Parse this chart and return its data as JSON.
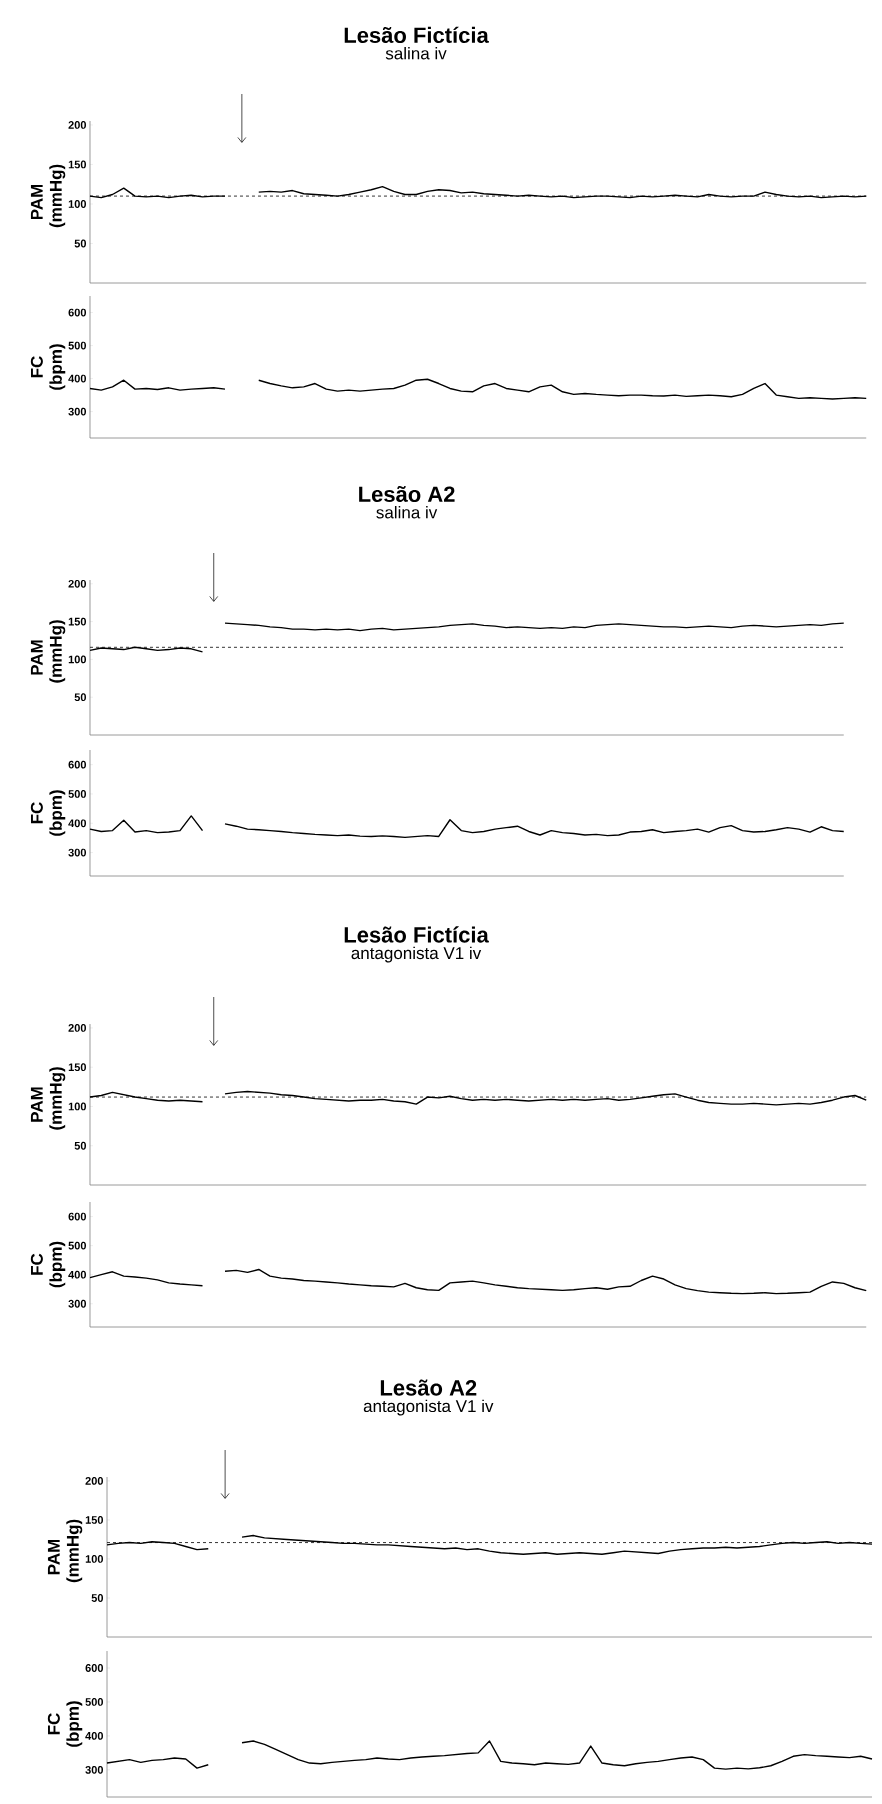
{
  "chart_data": [
    {
      "type": "line",
      "title": "Lesão Fictícia",
      "subtitle": "salina iv",
      "ylabel": "PAM (mmHg)",
      "tick_labels": "y",
      "ylim": [
        0,
        205
      ],
      "yticks": [
        50,
        100,
        150,
        200
      ],
      "categories": [
        null,
        null,
        null,
        null,
        null,
        null,
        null,
        null,
        null,
        null,
        null,
        null,
        null,
        null,
        null,
        null,
        null,
        null,
        null,
        null,
        null,
        null,
        null,
        null,
        null,
        null,
        null,
        null,
        null,
        null,
        null,
        null,
        null,
        null,
        null,
        null,
        null,
        null,
        null,
        null,
        null,
        null,
        null,
        null,
        null,
        null,
        null,
        null,
        null,
        null,
        null,
        null,
        null,
        null,
        null,
        null,
        null,
        null,
        null,
        null,
        null,
        null,
        null,
        null,
        null,
        null,
        null,
        null,
        null,
        null
      ],
      "series": [
        {
          "color": "#000000",
          "values": [
            110,
            108,
            112,
            120,
            110,
            109,
            110,
            108,
            110,
            111,
            109,
            110,
            110,
            null,
            null,
            null,
            null,
            null,
            null,
            null,
            null,
            null,
            null,
            null,
            null,
            null,
            null,
            null,
            null,
            null,
            null,
            null,
            null,
            null,
            null,
            null,
            null,
            null,
            null,
            null,
            null,
            null,
            null,
            null,
            null,
            null,
            null,
            null,
            null,
            null,
            null,
            null,
            null,
            null,
            null,
            null,
            null,
            null,
            null,
            null,
            null,
            null,
            null,
            null,
            null,
            null,
            null,
            null,
            null,
            null
          ]
        },
        {
          "color": "#000000",
          "values": [
            null,
            null,
            null,
            null,
            null,
            null,
            null,
            null,
            null,
            null,
            null,
            null,
            null,
            null,
            null,
            115,
            116,
            115,
            117,
            113,
            112,
            111,
            110,
            112,
            115,
            118,
            122,
            116,
            112,
            112,
            116,
            118,
            117,
            114,
            115,
            113,
            112,
            111,
            110,
            111,
            110,
            109,
            110,
            108,
            109,
            110,
            110,
            109,
            108,
            110,
            109,
            110,
            111,
            110,
            109,
            112,
            110,
            109,
            110,
            110,
            115,
            112,
            110,
            109,
            110,
            108,
            109,
            110,
            109,
            110
          ]
        }
      ],
      "ref_lines": [
        {
          "axis": "y",
          "value": 110,
          "color": "#000000",
          "line_style": "dashed"
        }
      ]
    },
    {
      "type": "line",
      "ylabel": "FC (bpm)",
      "tick_labels": "y",
      "ylim": [
        220,
        650
      ],
      "yticks": [
        300,
        400,
        500,
        600
      ],
      "categories": [
        null,
        null,
        null,
        null,
        null,
        null,
        null,
        null,
        null,
        null,
        null,
        null,
        null,
        null,
        null,
        null,
        null,
        null,
        null,
        null,
        null,
        null,
        null,
        null,
        null,
        null,
        null,
        null,
        null,
        null,
        null,
        null,
        null,
        null,
        null,
        null,
        null,
        null,
        null,
        null,
        null,
        null,
        null,
        null,
        null,
        null,
        null,
        null,
        null,
        null,
        null,
        null,
        null,
        null,
        null,
        null,
        null,
        null,
        null,
        null,
        null,
        null,
        null,
        null,
        null,
        null,
        null,
        null,
        null,
        null
      ],
      "series": [
        {
          "color": "#000000",
          "values": [
            370,
            365,
            375,
            395,
            368,
            370,
            367,
            372,
            365,
            368,
            370,
            372,
            368,
            null,
            null,
            null,
            null,
            null,
            null,
            null,
            null,
            null,
            null,
            null,
            null,
            null,
            null,
            null,
            null,
            null,
            null,
            null,
            null,
            null,
            null,
            null,
            null,
            null,
            null,
            null,
            null,
            null,
            null,
            null,
            null,
            null,
            null,
            null,
            null,
            null,
            null,
            null,
            null,
            null,
            null,
            null,
            null,
            null,
            null,
            null,
            null,
            null,
            null,
            null,
            null,
            null,
            null,
            null,
            null,
            null
          ]
        },
        {
          "color": "#000000",
          "values": [
            null,
            null,
            null,
            null,
            null,
            null,
            null,
            null,
            null,
            null,
            null,
            null,
            null,
            null,
            null,
            395,
            385,
            378,
            372,
            375,
            385,
            368,
            362,
            365,
            362,
            365,
            368,
            370,
            380,
            395,
            398,
            385,
            370,
            362,
            360,
            378,
            385,
            370,
            365,
            360,
            375,
            380,
            360,
            352,
            355,
            352,
            350,
            348,
            350,
            350,
            348,
            347,
            350,
            346,
            348,
            350,
            348,
            345,
            352,
            370,
            385,
            350,
            345,
            340,
            342,
            340,
            338,
            340,
            342,
            340
          ]
        }
      ]
    },
    {
      "type": "line",
      "title": "Lesão A2",
      "subtitle": "salina iv",
      "ylabel": "PAM (mmHg)",
      "tick_labels": "y",
      "ylim": [
        0,
        205
      ],
      "yticks": [
        50,
        100,
        150,
        200
      ],
      "categories": [
        null,
        null,
        null,
        null,
        null,
        null,
        null,
        null,
        null,
        null,
        null,
        null,
        null,
        null,
        null,
        null,
        null,
        null,
        null,
        null,
        null,
        null,
        null,
        null,
        null,
        null,
        null,
        null,
        null,
        null,
        null,
        null,
        null,
        null,
        null,
        null,
        null,
        null,
        null,
        null,
        null,
        null,
        null,
        null,
        null,
        null,
        null,
        null,
        null,
        null,
        null,
        null,
        null,
        null,
        null,
        null,
        null,
        null,
        null,
        null,
        null,
        null,
        null,
        null,
        null,
        null,
        null,
        null
      ],
      "series": [
        {
          "color": "#000000",
          "values": [
            112,
            115,
            114,
            113,
            116,
            114,
            112,
            113,
            115,
            114,
            110,
            null,
            null,
            null,
            null,
            null,
            null,
            null,
            null,
            null,
            null,
            null,
            null,
            null,
            null,
            null,
            null,
            null,
            null,
            null,
            null,
            null,
            null,
            null,
            null,
            null,
            null,
            null,
            null,
            null,
            null,
            null,
            null,
            null,
            null,
            null,
            null,
            null,
            null,
            null,
            null,
            null,
            null,
            null,
            null,
            null,
            null,
            null,
            null,
            null,
            null,
            null,
            null,
            null,
            null,
            null,
            null,
            null
          ]
        },
        {
          "color": "#000000",
          "values": [
            null,
            null,
            null,
            null,
            null,
            null,
            null,
            null,
            null,
            null,
            null,
            null,
            148,
            147,
            146,
            145,
            143,
            142,
            140,
            140,
            139,
            140,
            139,
            140,
            138,
            140,
            141,
            139,
            140,
            141,
            142,
            143,
            145,
            146,
            147,
            145,
            144,
            142,
            143,
            142,
            141,
            142,
            141,
            143,
            142,
            145,
            146,
            147,
            146,
            145,
            144,
            143,
            143,
            142,
            143,
            144,
            143,
            142,
            144,
            145,
            144,
            143,
            144,
            145,
            146,
            145,
            147,
            148
          ]
        }
      ],
      "ref_lines": [
        {
          "axis": "y",
          "value": 116,
          "color": "#000000",
          "line_style": "dashed"
        }
      ]
    },
    {
      "type": "line",
      "ylabel": "FC (bpm)",
      "tick_labels": "y",
      "ylim": [
        220,
        650
      ],
      "yticks": [
        300,
        400,
        500,
        600
      ],
      "categories": [
        null,
        null,
        null,
        null,
        null,
        null,
        null,
        null,
        null,
        null,
        null,
        null,
        null,
        null,
        null,
        null,
        null,
        null,
        null,
        null,
        null,
        null,
        null,
        null,
        null,
        null,
        null,
        null,
        null,
        null,
        null,
        null,
        null,
        null,
        null,
        null,
        null,
        null,
        null,
        null,
        null,
        null,
        null,
        null,
        null,
        null,
        null,
        null,
        null,
        null,
        null,
        null,
        null,
        null,
        null,
        null,
        null,
        null,
        null,
        null,
        null,
        null,
        null,
        null,
        null,
        null,
        null,
        null
      ],
      "series": [
        {
          "color": "#000000",
          "values": [
            380,
            372,
            375,
            410,
            370,
            375,
            368,
            370,
            375,
            425,
            375,
            null,
            null,
            null,
            null,
            null,
            null,
            null,
            null,
            null,
            null,
            null,
            null,
            null,
            null,
            null,
            null,
            null,
            null,
            null,
            null,
            null,
            null,
            null,
            null,
            null,
            null,
            null,
            null,
            null,
            null,
            null,
            null,
            null,
            null,
            null,
            null,
            null,
            null,
            null,
            null,
            null,
            null,
            null,
            null,
            null,
            null,
            null,
            null,
            null,
            null,
            null,
            null,
            null,
            null,
            null,
            null,
            null
          ]
        },
        {
          "color": "#000000",
          "values": [
            null,
            null,
            null,
            null,
            null,
            null,
            null,
            null,
            null,
            null,
            null,
            null,
            398,
            390,
            380,
            378,
            375,
            372,
            368,
            365,
            362,
            360,
            358,
            360,
            356,
            355,
            357,
            355,
            352,
            355,
            358,
            355,
            412,
            375,
            368,
            372,
            380,
            385,
            390,
            372,
            360,
            375,
            368,
            365,
            360,
            362,
            358,
            360,
            370,
            372,
            378,
            368,
            372,
            375,
            380,
            370,
            385,
            392,
            375,
            370,
            372,
            378,
            385,
            380,
            370,
            388,
            375,
            372
          ]
        }
      ]
    },
    {
      "type": "line",
      "title": "Lesão Fictícia",
      "subtitle": "antagonista V1 iv",
      "ylabel": "PAM (mmHg)",
      "tick_labels": "y",
      "ylim": [
        0,
        205
      ],
      "yticks": [
        50,
        100,
        150,
        200
      ],
      "categories": [
        null,
        null,
        null,
        null,
        null,
        null,
        null,
        null,
        null,
        null,
        null,
        null,
        null,
        null,
        null,
        null,
        null,
        null,
        null,
        null,
        null,
        null,
        null,
        null,
        null,
        null,
        null,
        null,
        null,
        null,
        null,
        null,
        null,
        null,
        null,
        null,
        null,
        null,
        null,
        null,
        null,
        null,
        null,
        null,
        null,
        null,
        null,
        null,
        null,
        null,
        null,
        null,
        null,
        null,
        null,
        null,
        null,
        null,
        null,
        null,
        null,
        null,
        null,
        null,
        null,
        null,
        null,
        null,
        null,
        null
      ],
      "series": [
        {
          "color": "#000000",
          "values": [
            112,
            114,
            118,
            115,
            112,
            110,
            108,
            107,
            108,
            107,
            106,
            null,
            null,
            null,
            null,
            null,
            null,
            null,
            null,
            null,
            null,
            null,
            null,
            null,
            null,
            null,
            null,
            null,
            null,
            null,
            null,
            null,
            null,
            null,
            null,
            null,
            null,
            null,
            null,
            null,
            null,
            null,
            null,
            null,
            null,
            null,
            null,
            null,
            null,
            null,
            null,
            null,
            null,
            null,
            null,
            null,
            null,
            null,
            null,
            null,
            null,
            null,
            null,
            null,
            null,
            null,
            null,
            null,
            null,
            null
          ]
        },
        {
          "color": "#000000",
          "values": [
            null,
            null,
            null,
            null,
            null,
            null,
            null,
            null,
            null,
            null,
            null,
            null,
            116,
            118,
            119,
            118,
            117,
            115,
            114,
            112,
            110,
            109,
            108,
            107,
            108,
            108,
            109,
            107,
            106,
            103,
            112,
            111,
            113,
            110,
            108,
            109,
            108,
            109,
            108,
            107,
            108,
            109,
            108,
            109,
            108,
            109,
            110,
            108,
            109,
            111,
            113,
            115,
            116,
            112,
            108,
            105,
            104,
            103,
            103,
            104,
            103,
            102,
            103,
            104,
            103,
            105,
            108,
            112,
            114,
            108
          ]
        }
      ],
      "ref_lines": [
        {
          "axis": "y",
          "value": 112,
          "color": "#000000",
          "line_style": "dashed"
        }
      ]
    },
    {
      "type": "line",
      "ylabel": "FC (bpm)",
      "tick_labels": "y",
      "ylim": [
        220,
        650
      ],
      "yticks": [
        300,
        400,
        500,
        600
      ],
      "categories": [
        null,
        null,
        null,
        null,
        null,
        null,
        null,
        null,
        null,
        null,
        null,
        null,
        null,
        null,
        null,
        null,
        null,
        null,
        null,
        null,
        null,
        null,
        null,
        null,
        null,
        null,
        null,
        null,
        null,
        null,
        null,
        null,
        null,
        null,
        null,
        null,
        null,
        null,
        null,
        null,
        null,
        null,
        null,
        null,
        null,
        null,
        null,
        null,
        null,
        null,
        null,
        null,
        null,
        null,
        null,
        null,
        null,
        null,
        null,
        null,
        null,
        null,
        null,
        null,
        null,
        null,
        null,
        null,
        null,
        null
      ],
      "series": [
        {
          "color": "#000000",
          "values": [
            390,
            400,
            410,
            395,
            392,
            388,
            382,
            372,
            368,
            365,
            362,
            null,
            null,
            null,
            null,
            null,
            null,
            null,
            null,
            null,
            null,
            null,
            null,
            null,
            null,
            null,
            null,
            null,
            null,
            null,
            null,
            null,
            null,
            null,
            null,
            null,
            null,
            null,
            null,
            null,
            null,
            null,
            null,
            null,
            null,
            null,
            null,
            null,
            null,
            null,
            null,
            null,
            null,
            null,
            null,
            null,
            null,
            null,
            null,
            null,
            null,
            null,
            null,
            null,
            null,
            null,
            null,
            null,
            null,
            null
          ]
        },
        {
          "color": "#000000",
          "values": [
            null,
            null,
            null,
            null,
            null,
            null,
            null,
            null,
            null,
            null,
            null,
            null,
            412,
            415,
            408,
            418,
            395,
            388,
            385,
            380,
            378,
            375,
            372,
            368,
            365,
            362,
            360,
            358,
            370,
            355,
            348,
            346,
            372,
            375,
            378,
            372,
            365,
            360,
            355,
            352,
            350,
            348,
            346,
            348,
            352,
            355,
            350,
            358,
            360,
            380,
            395,
            385,
            365,
            352,
            345,
            340,
            338,
            336,
            335,
            336,
            338,
            335,
            336,
            338,
            340,
            360,
            375,
            370,
            355,
            345
          ]
        }
      ]
    },
    {
      "type": "line",
      "title": "Lesão A2",
      "subtitle": "antagonista V1 iv",
      "ylabel": "PAM (mmHg)",
      "tick_labels": "y",
      "ylim": [
        0,
        205
      ],
      "yticks": [
        50,
        100,
        150,
        200
      ],
      "categories": [
        null,
        null,
        null,
        null,
        null,
        null,
        null,
        null,
        null,
        null,
        null,
        null,
        null,
        null,
        null,
        null,
        null,
        null,
        null,
        null,
        null,
        null,
        null,
        null,
        null,
        null,
        null,
        null,
        null,
        null,
        null,
        null,
        null,
        null,
        null,
        null,
        null,
        null,
        null,
        null,
        null,
        null,
        null,
        null,
        null,
        null,
        null,
        null,
        null,
        null,
        null,
        null,
        null,
        null,
        null,
        null,
        null,
        null,
        null,
        null,
        null,
        null,
        null,
        null,
        null,
        null,
        null,
        null,
        null
      ],
      "series": [
        {
          "color": "#000000",
          "values": [
            118,
            120,
            121,
            120,
            122,
            121,
            120,
            116,
            112,
            113,
            null,
            null,
            null,
            null,
            null,
            null,
            null,
            null,
            null,
            null,
            null,
            null,
            null,
            null,
            null,
            null,
            null,
            null,
            null,
            null,
            null,
            null,
            null,
            null,
            null,
            null,
            null,
            null,
            null,
            null,
            null,
            null,
            null,
            null,
            null,
            null,
            null,
            null,
            null,
            null,
            null,
            null,
            null,
            null,
            null,
            null,
            null,
            null,
            null,
            null,
            null,
            null,
            null,
            null,
            null,
            null,
            null,
            null,
            null
          ]
        },
        {
          "color": "#000000",
          "values": [
            null,
            null,
            null,
            null,
            null,
            null,
            null,
            null,
            null,
            null,
            null,
            null,
            128,
            130,
            127,
            126,
            125,
            124,
            123,
            122,
            121,
            120,
            120,
            119,
            118,
            118,
            117,
            116,
            115,
            114,
            113,
            114,
            112,
            113,
            110,
            108,
            107,
            106,
            107,
            108,
            106,
            107,
            108,
            107,
            106,
            108,
            110,
            109,
            108,
            107,
            110,
            112,
            113,
            114,
            114,
            115,
            114,
            115,
            116,
            118,
            120,
            121,
            120,
            121,
            122,
            120,
            121,
            120,
            119
          ]
        }
      ],
      "ref_lines": [
        {
          "axis": "y",
          "value": 121,
          "color": "#000000",
          "line_style": "dashed"
        }
      ]
    },
    {
      "type": "line",
      "ylabel": "FC (bpm)",
      "tick_labels": "y",
      "ylim": [
        220,
        650
      ],
      "yticks": [
        300,
        400,
        500,
        600
      ],
      "categories": [
        null,
        null,
        null,
        null,
        null,
        null,
        null,
        null,
        null,
        null,
        null,
        null,
        null,
        null,
        null,
        null,
        null,
        null,
        null,
        null,
        null,
        null,
        null,
        null,
        null,
        null,
        null,
        null,
        null,
        null,
        null,
        null,
        null,
        null,
        null,
        null,
        null,
        null,
        null,
        null,
        null,
        null,
        null,
        null,
        null,
        null,
        null,
        null,
        null,
        null,
        null,
        null,
        null,
        null,
        null,
        null,
        null,
        null,
        null,
        null,
        null,
        null,
        null,
        null,
        null,
        null,
        null,
        null,
        null
      ],
      "series": [
        {
          "color": "#000000",
          "values": [
            320,
            325,
            330,
            322,
            328,
            330,
            335,
            332,
            305,
            315,
            null,
            null,
            null,
            null,
            null,
            null,
            null,
            null,
            null,
            null,
            null,
            null,
            null,
            null,
            null,
            null,
            null,
            null,
            null,
            null,
            null,
            null,
            null,
            null,
            null,
            null,
            null,
            null,
            null,
            null,
            null,
            null,
            null,
            null,
            null,
            null,
            null,
            null,
            null,
            null,
            null,
            null,
            null,
            null,
            null,
            null,
            null,
            null,
            null,
            null,
            null,
            null,
            null,
            null,
            null,
            null,
            null,
            null,
            null
          ]
        },
        {
          "color": "#000000",
          "values": [
            null,
            null,
            null,
            null,
            null,
            null,
            null,
            null,
            null,
            null,
            null,
            null,
            380,
            385,
            375,
            360,
            345,
            330,
            320,
            318,
            322,
            325,
            328,
            330,
            335,
            332,
            330,
            335,
            338,
            340,
            342,
            345,
            348,
            350,
            385,
            325,
            320,
            318,
            315,
            320,
            318,
            316,
            320,
            370,
            320,
            315,
            312,
            318,
            322,
            325,
            330,
            335,
            338,
            330,
            305,
            302,
            305,
            303,
            306,
            312,
            325,
            340,
            345,
            342,
            340,
            338,
            336,
            340,
            332
          ]
        }
      ]
    }
  ]
}
